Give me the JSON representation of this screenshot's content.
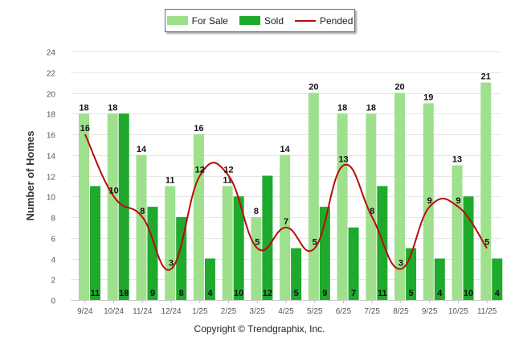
{
  "chart_data": {
    "type": "bar",
    "categories": [
      "9/24",
      "10/24",
      "11/24",
      "12/24",
      "1/25",
      "2/25",
      "3/25",
      "4/25",
      "5/25",
      "6/25",
      "7/25",
      "8/25",
      "9/25",
      "10/25",
      "11/25"
    ],
    "series": [
      {
        "name": "For Sale",
        "type": "bar",
        "color": "#9ee08c",
        "values": [
          18,
          18,
          14,
          11,
          16,
          11,
          8,
          14,
          20,
          18,
          18,
          20,
          19,
          13,
          21
        ]
      },
      {
        "name": "Sold",
        "type": "bar",
        "color": "#1faa2e",
        "values": [
          11,
          18,
          9,
          8,
          4,
          10,
          12,
          5,
          9,
          7,
          11,
          5,
          4,
          10,
          4
        ]
      },
      {
        "name": "Pended",
        "type": "line",
        "color": "#b80c0c",
        "values": [
          16,
          10,
          8,
          3,
          12,
          12,
          5,
          7,
          5,
          13,
          8,
          3,
          9,
          9,
          5
        ]
      }
    ],
    "title": "",
    "xlabel": "",
    "ylabel": "Number of Homes",
    "ylim": [
      0,
      24
    ],
    "yticks": [
      0,
      2,
      4,
      6,
      8,
      10,
      12,
      14,
      16,
      18,
      20,
      22,
      24
    ],
    "grid": true,
    "legend_position": "top-center"
  },
  "copyright": "Copyright © Trendgraphix, Inc."
}
